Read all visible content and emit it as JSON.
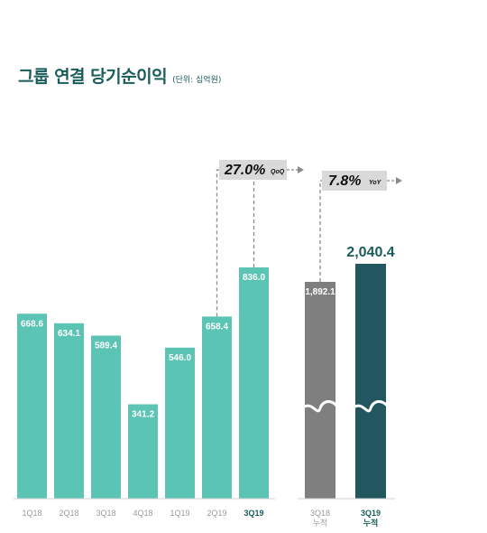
{
  "header": {
    "title": "그룹 연결 당기순이익",
    "unit": "(단위: 십억원)"
  },
  "colors": {
    "quarter_bar": "#5cc4b4",
    "prev_cumulative_bar": "#7f7f7f",
    "curr_cumulative_bar": "#22575f",
    "title": "#1a5c5a",
    "growth_box": "#d9d9d9"
  },
  "chart_data": [
    {
      "type": "bar",
      "categories": [
        "1Q18",
        "2Q18",
        "3Q18",
        "4Q18",
        "1Q19",
        "2Q19",
        "3Q19"
      ],
      "values": [
        668.6,
        634.1,
        589.4,
        341.2,
        546.0,
        658.4,
        836.0
      ],
      "value_labels": [
        "668.6",
        "634.1",
        "589.4",
        "341.2",
        "546.0",
        "658.4",
        "836.0"
      ],
      "highlight_category": "3Q19",
      "growth": {
        "value": "27.0%",
        "label": "QoQ"
      },
      "ylim": [
        0,
        900
      ]
    },
    {
      "type": "bar",
      "categories": [
        {
          "line1": "3Q18",
          "line2": "누적"
        },
        {
          "line1": "3Q19",
          "line2": "누적"
        }
      ],
      "values": [
        1892.1,
        2040.4
      ],
      "value_labels": [
        "1,892.1",
        "2,040.4"
      ],
      "axis_break": true,
      "growth": {
        "value": "7.8%",
        "label": "YoY"
      }
    }
  ]
}
